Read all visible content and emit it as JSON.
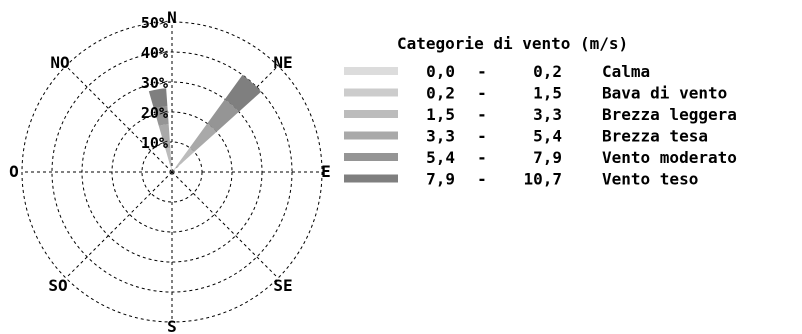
{
  "chart_data": {
    "type": "polar-bar",
    "title": "",
    "radial_ticks": [
      "10%",
      "20%",
      "30%",
      "40%",
      "50%"
    ],
    "radial_max": 50,
    "directions": [
      {
        "key": "N",
        "label": "N"
      },
      {
        "key": "NE",
        "label": "NE"
      },
      {
        "key": "E",
        "label": "E"
      },
      {
        "key": "SE",
        "label": "SE"
      },
      {
        "key": "S",
        "label": "S"
      },
      {
        "key": "SO",
        "label": "SO"
      },
      {
        "key": "O",
        "label": "O"
      },
      {
        "key": "NO",
        "label": "NO"
      }
    ],
    "legend": {
      "title": "Categorie di vento (m/s)",
      "items": [
        {
          "from": "0,0",
          "to": "0,2",
          "name": "Calma",
          "color": "#dcdcdc"
        },
        {
          "from": "0,2",
          "to": "1,5",
          "name": "Bava di vento",
          "color": "#cccccc"
        },
        {
          "from": "1,5",
          "to": "3,3",
          "name": "Brezza leggera",
          "color": "#bcbcbc"
        },
        {
          "from": "3,3",
          "to": "5,4",
          "name": "Brezza tesa",
          "color": "#a9a9a9"
        },
        {
          "from": "5,4",
          "to": "7,9",
          "name": "Vento moderato",
          "color": "#959595"
        },
        {
          "from": "7,9",
          "to": "10,7",
          "name": "Vento teso",
          "color": "#7f7f7f"
        }
      ]
    },
    "series": [
      {
        "direction": "NNO",
        "angle_deg": -10,
        "stack": [
          {
            "category": "Calma",
            "value": 0
          },
          {
            "category": "Bava di vento",
            "value": 2
          },
          {
            "category": "Brezza leggera",
            "value": 6
          },
          {
            "category": "Brezza tesa",
            "value": 8
          },
          {
            "category": "Vento moderato",
            "value": 6
          },
          {
            "category": "Vento teso",
            "value": 6
          }
        ]
      },
      {
        "direction": "NE",
        "angle_deg": 42,
        "stack": [
          {
            "category": "Calma",
            "value": 0
          },
          {
            "category": "Bava di vento",
            "value": 2
          },
          {
            "category": "Brezza leggera",
            "value": 8
          },
          {
            "category": "Brezza tesa",
            "value": 10
          },
          {
            "category": "Vento moderato",
            "value": 10
          },
          {
            "category": "Vento teso",
            "value": 10
          }
        ]
      }
    ]
  }
}
